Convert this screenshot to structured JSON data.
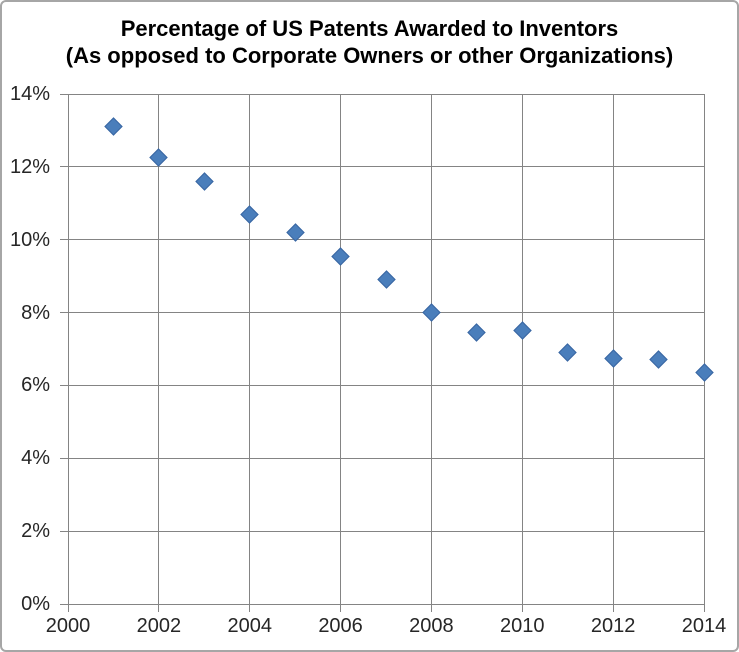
{
  "title": {
    "line1": "Percentage of US Patents Awarded to Inventors",
    "line2": "(As opposed to Corporate Owners or other Organizations)"
  },
  "chart_data": {
    "type": "scatter",
    "title": "Percentage of US Patents Awarded to Inventors (As opposed to Corporate Owners or other Organizations)",
    "x": [
      2001,
      2002,
      2003,
      2004,
      2005,
      2006,
      2007,
      2008,
      2009,
      2010,
      2011,
      2012,
      2013,
      2014
    ],
    "values": [
      13.1,
      12.25,
      11.6,
      10.7,
      10.2,
      9.55,
      8.9,
      8.0,
      7.45,
      7.5,
      6.9,
      6.75,
      6.7,
      6.35
    ],
    "xlabel": "",
    "ylabel": "",
    "xlim": [
      2000,
      2014
    ],
    "ylim": [
      0,
      14
    ],
    "x_ticks": [
      2000,
      2002,
      2004,
      2006,
      2008,
      2010,
      2012,
      2014
    ],
    "x_tick_labels": [
      "2000",
      "2002",
      "2004",
      "2006",
      "2008",
      "2010",
      "2012",
      "2014"
    ],
    "y_ticks": [
      0,
      2,
      4,
      6,
      8,
      10,
      12,
      14
    ],
    "y_tick_labels": [
      "0%",
      "2%",
      "4%",
      "6%",
      "8%",
      "10%",
      "12%",
      "14%"
    ],
    "grid": true,
    "legend": "none",
    "marker": "diamond",
    "colors": {
      "marker_fill": "#4A7EBB",
      "marker_border": "#3A67A3",
      "gridline": "#848484",
      "axis_label": "#262626",
      "chart_border": "#A6A6A6",
      "title_text": "#000000"
    }
  }
}
